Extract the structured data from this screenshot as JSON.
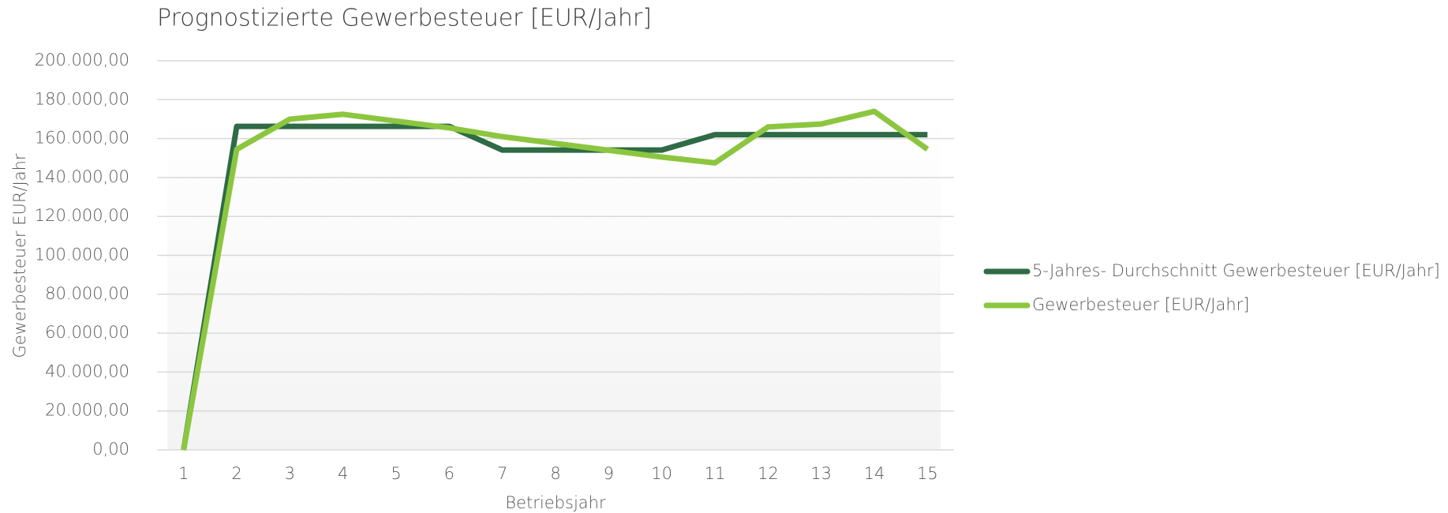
{
  "chart_data": {
    "type": "line",
    "title": "Prognostizierte Gewerbesteuer [EUR/Jahr]",
    "x_label": "Betriebsjahr",
    "y_label": "Gewerbesteuer EUR/Jahr",
    "categories": [
      "1",
      "2",
      "3",
      "4",
      "5",
      "6",
      "7",
      "8",
      "9",
      "10",
      "11",
      "12",
      "13",
      "14",
      "15"
    ],
    "series": [
      {
        "name": "5-Jahres- Durchschnitt Gewerbesteuer [EUR/Jahr]",
        "color": "#2e6b46",
        "values": [
          0,
          166300,
          166300,
          166300,
          166300,
          166300,
          154100,
          154100,
          154100,
          154100,
          162000,
          162000,
          162000,
          162000,
          162000
        ]
      },
      {
        "name": "Gewerbesteuer [EUR/Jahr]",
        "color": "#8cc63f",
        "values": [
          0,
          154500,
          170000,
          172500,
          169000,
          165500,
          161000,
          157500,
          154000,
          150500,
          147500,
          166000,
          167500,
          174000,
          154500
        ]
      }
    ],
    "ylim": [
      0,
      200000
    ],
    "yticks": [
      {
        "value": 0,
        "label": "0,00"
      },
      {
        "value": 20000,
        "label": "20.000,00"
      },
      {
        "value": 40000,
        "label": "40.000,00"
      },
      {
        "value": 60000,
        "label": "60.000,00"
      },
      {
        "value": 80000,
        "label": "80.000,00"
      },
      {
        "value": 100000,
        "label": "100.000,00"
      },
      {
        "value": 120000,
        "label": "120.000,00"
      },
      {
        "value": 140000,
        "label": "140.000,00"
      },
      {
        "value": 160000,
        "label": "160.000,00"
      },
      {
        "value": 180000,
        "label": "180.000,00"
      },
      {
        "value": 200000,
        "label": "200.000,00"
      }
    ],
    "grid": true,
    "legend": "right"
  }
}
